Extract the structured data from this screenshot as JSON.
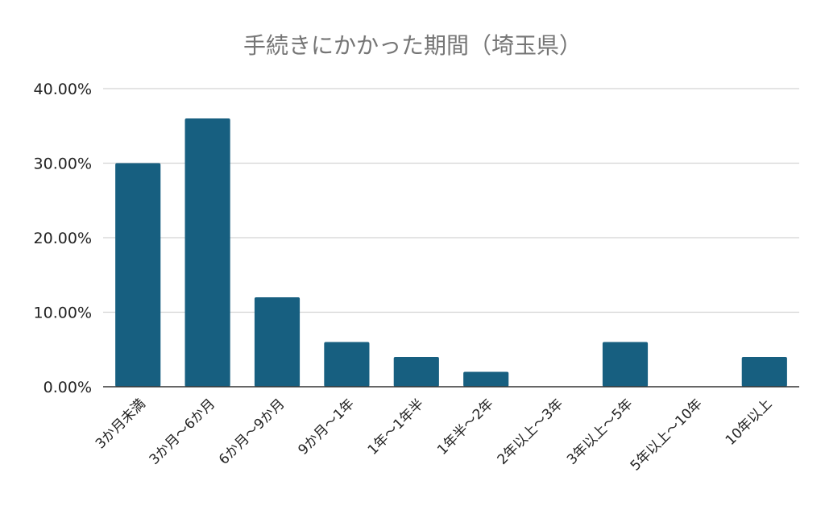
{
  "chart_data": {
    "type": "bar",
    "title": "手続きにかかった期間（埼玉県）",
    "xlabel": "",
    "ylabel": "",
    "categories": [
      "3か月未満",
      "3か月〜6か月",
      "6か月〜9か月",
      "9か月〜1年",
      "1年〜1年半",
      "1年半〜2年",
      "2年以上〜3年",
      "3年以上〜5年",
      "5年以上〜10年",
      "10年以上"
    ],
    "values": [
      30,
      36,
      12,
      6,
      4,
      2,
      0,
      6,
      0,
      4
    ],
    "yticks": [
      "0.00%",
      "10.00%",
      "20.00%",
      "30.00%",
      "40.00%"
    ],
    "ylim": [
      0,
      40
    ],
    "grid": true,
    "legend": "none",
    "colors": {
      "bar": "#175f80",
      "grid": "#d3d3d3",
      "axis": "#333333",
      "title": "#757575",
      "tick": "#222222"
    }
  }
}
